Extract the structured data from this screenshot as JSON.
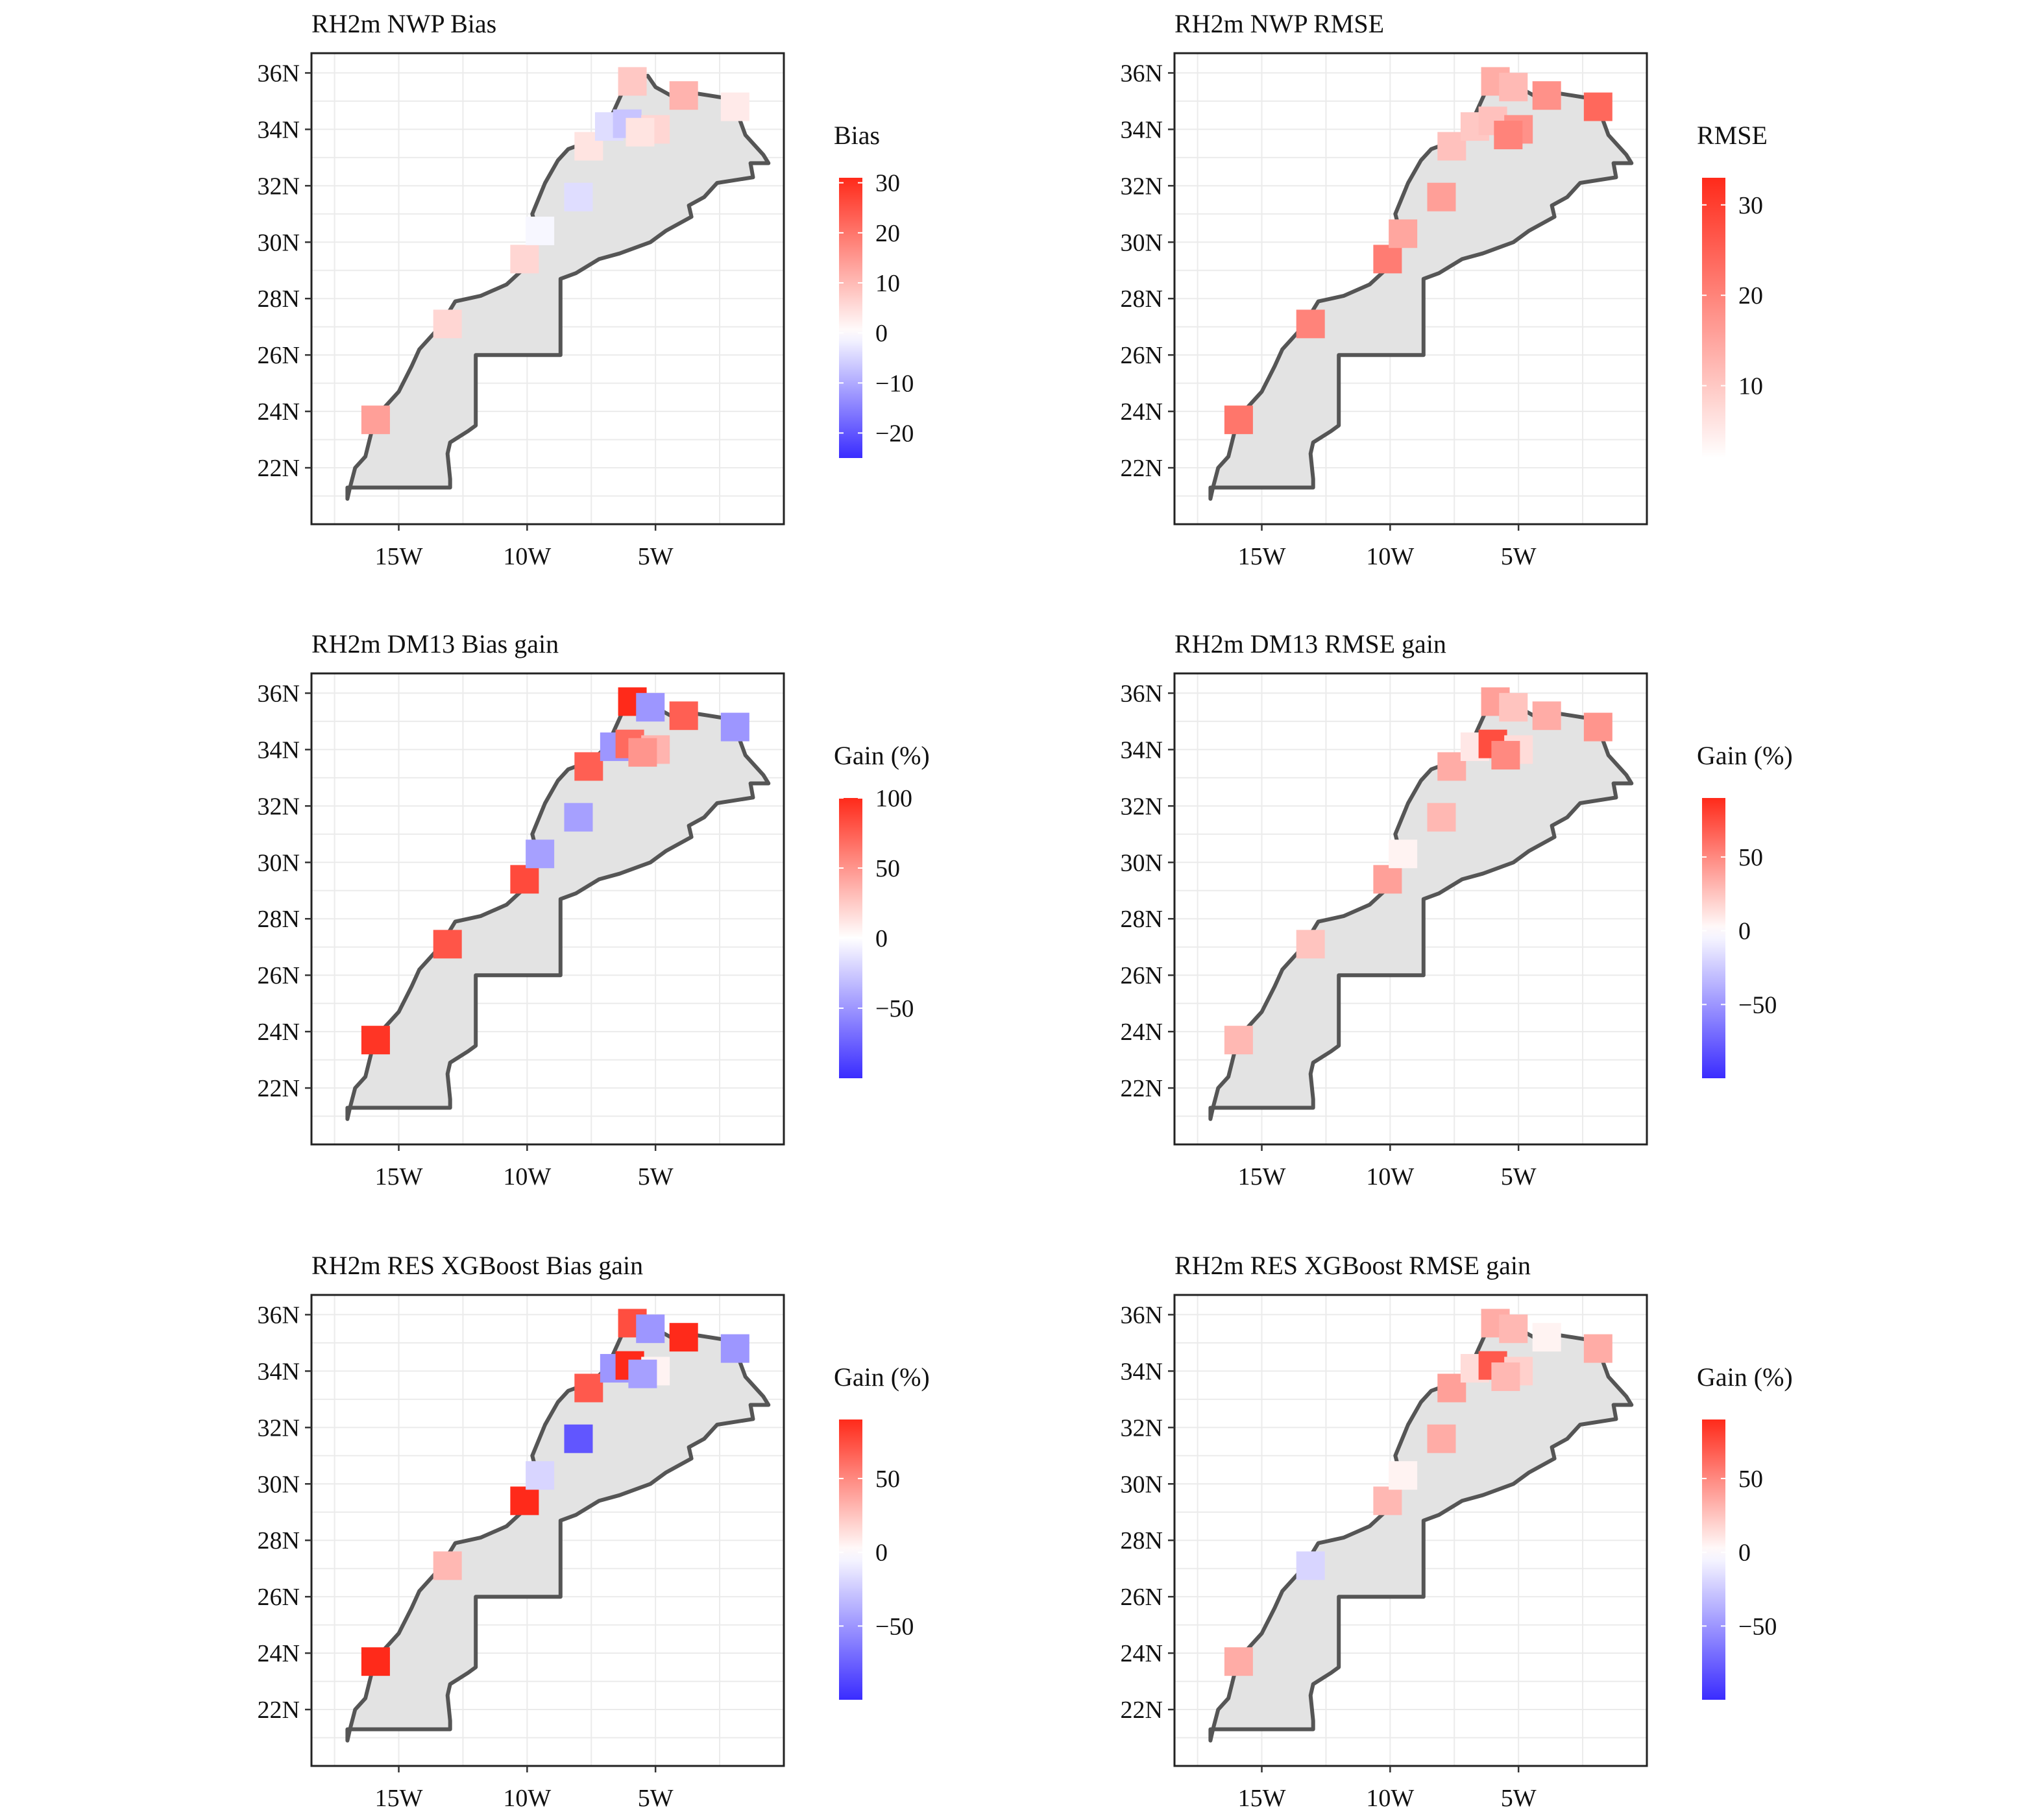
{
  "colors": {
    "negative": "#3a2cff",
    "zero": "#ffffff",
    "positive": "#ff2a1a",
    "land": "#e3e3e3",
    "border": "#555555",
    "grid": "#ebebeb"
  },
  "axes": {
    "x_ticks": [
      "15W",
      "10W",
      "5W"
    ],
    "y_ticks": [
      "22N",
      "24N",
      "26N",
      "28N",
      "30N",
      "32N",
      "34N",
      "36N"
    ]
  },
  "chart_data": [
    {
      "type": "map",
      "title": "RH2m NWP Bias",
      "legend": {
        "title": "Bias",
        "min": -25,
        "max": 31,
        "ticks": [
          30,
          20,
          10,
          0,
          -10,
          -20
        ],
        "tick_labels": [
          "30",
          "20",
          "10",
          "0",
          "−10",
          "−20"
        ]
      },
      "stations": [
        {
          "lon": -15.9,
          "lat": 23.7,
          "value": 14
        },
        {
          "lon": -13.1,
          "lat": 27.1,
          "value": 6
        },
        {
          "lon": -10.1,
          "lat": 29.4,
          "value": 6
        },
        {
          "lon": -9.5,
          "lat": 30.4,
          "value": -1
        },
        {
          "lon": -8.0,
          "lat": 31.6,
          "value": -4
        },
        {
          "lon": -7.6,
          "lat": 33.4,
          "value": 4
        },
        {
          "lon": -6.8,
          "lat": 34.1,
          "value": -4
        },
        {
          "lon": -6.1,
          "lat": 34.2,
          "value": -7
        },
        {
          "lon": -5.0,
          "lat": 34.0,
          "value": 6
        },
        {
          "lon": -5.6,
          "lat": 33.9,
          "value": 4
        },
        {
          "lon": -5.9,
          "lat": 35.7,
          "value": 8
        },
        {
          "lon": -3.9,
          "lat": 35.2,
          "value": 11
        },
        {
          "lon": -1.9,
          "lat": 34.8,
          "value": 3
        }
      ]
    },
    {
      "type": "map",
      "title": "RH2m NWP RMSE",
      "legend": {
        "title": "RMSE",
        "min": 2,
        "max": 33,
        "ticks": [
          30,
          20,
          10
        ],
        "tick_labels": [
          "30",
          "20",
          "10"
        ]
      },
      "stations": [
        {
          "lon": -15.9,
          "lat": 23.7,
          "value": 22
        },
        {
          "lon": -13.1,
          "lat": 27.1,
          "value": 20
        },
        {
          "lon": -10.1,
          "lat": 29.4,
          "value": 21
        },
        {
          "lon": -9.5,
          "lat": 30.3,
          "value": 15
        },
        {
          "lon": -8.0,
          "lat": 31.6,
          "value": 16
        },
        {
          "lon": -7.6,
          "lat": 33.4,
          "value": 11
        },
        {
          "lon": -6.7,
          "lat": 34.1,
          "value": 10
        },
        {
          "lon": -6.0,
          "lat": 34.3,
          "value": 11
        },
        {
          "lon": -5.0,
          "lat": 34.0,
          "value": 18
        },
        {
          "lon": -5.4,
          "lat": 33.8,
          "value": 20
        },
        {
          "lon": -5.9,
          "lat": 35.7,
          "value": 14
        },
        {
          "lon": -5.2,
          "lat": 35.5,
          "value": 12
        },
        {
          "lon": -3.9,
          "lat": 35.2,
          "value": 18
        },
        {
          "lon": -1.9,
          "lat": 34.8,
          "value": 24
        }
      ]
    },
    {
      "type": "map",
      "title": "RH2m DM13 Bias gain",
      "legend": {
        "title": "Gain (%)",
        "min": -100,
        "max": 100,
        "ticks": [
          100,
          50,
          0,
          -50
        ],
        "tick_labels": [
          "100",
          "50",
          "0",
          "−50"
        ]
      },
      "stations": [
        {
          "lon": -15.9,
          "lat": 23.7,
          "value": 95
        },
        {
          "lon": -13.1,
          "lat": 27.1,
          "value": 80
        },
        {
          "lon": -10.1,
          "lat": 29.4,
          "value": 85
        },
        {
          "lon": -9.5,
          "lat": 30.3,
          "value": -45
        },
        {
          "lon": -8.0,
          "lat": 31.6,
          "value": -45
        },
        {
          "lon": -7.6,
          "lat": 33.4,
          "value": 75
        },
        {
          "lon": -6.6,
          "lat": 34.1,
          "value": -50
        },
        {
          "lon": -6.0,
          "lat": 34.2,
          "value": 70
        },
        {
          "lon": -5.0,
          "lat": 34.0,
          "value": 35
        },
        {
          "lon": -5.5,
          "lat": 33.9,
          "value": 50
        },
        {
          "lon": -5.9,
          "lat": 35.7,
          "value": 110
        },
        {
          "lon": -5.2,
          "lat": 35.5,
          "value": -50
        },
        {
          "lon": -3.9,
          "lat": 35.2,
          "value": 75
        },
        {
          "lon": -1.9,
          "lat": 34.8,
          "value": -50
        }
      ]
    },
    {
      "type": "map",
      "title": "RH2m DM13 RMSE gain",
      "legend": {
        "title": "Gain (%)",
        "min": -100,
        "max": 90,
        "ticks": [
          50,
          0,
          -50
        ],
        "tick_labels": [
          "50",
          "0",
          "−50"
        ]
      },
      "stations": [
        {
          "lon": -15.9,
          "lat": 23.7,
          "value": 30
        },
        {
          "lon": -13.1,
          "lat": 27.1,
          "value": 25
        },
        {
          "lon": -10.1,
          "lat": 29.4,
          "value": 40
        },
        {
          "lon": -9.5,
          "lat": 30.3,
          "value": 5
        },
        {
          "lon": -8.0,
          "lat": 31.6,
          "value": 30
        },
        {
          "lon": -7.6,
          "lat": 33.4,
          "value": 35
        },
        {
          "lon": -6.7,
          "lat": 34.1,
          "value": 10
        },
        {
          "lon": -6.0,
          "lat": 34.2,
          "value": 75
        },
        {
          "lon": -5.0,
          "lat": 34.0,
          "value": 15
        },
        {
          "lon": -5.5,
          "lat": 33.8,
          "value": 50
        },
        {
          "lon": -5.9,
          "lat": 35.7,
          "value": 40
        },
        {
          "lon": -5.2,
          "lat": 35.5,
          "value": 25
        },
        {
          "lon": -3.9,
          "lat": 35.2,
          "value": 35
        },
        {
          "lon": -1.9,
          "lat": 34.8,
          "value": 45
        }
      ]
    },
    {
      "type": "map",
      "title": "RH2m RES XGBoost Bias gain",
      "legend": {
        "title": "Gain (%)",
        "min": -100,
        "max": 90,
        "ticks": [
          50,
          0,
          -50
        ],
        "tick_labels": [
          "50",
          "0",
          "−50"
        ]
      },
      "stations": [
        {
          "lon": -15.9,
          "lat": 23.7,
          "value": 90
        },
        {
          "lon": -13.1,
          "lat": 27.1,
          "value": 30
        },
        {
          "lon": -10.1,
          "lat": 29.4,
          "value": 95
        },
        {
          "lon": -9.5,
          "lat": 30.3,
          "value": -20
        },
        {
          "lon": -8.0,
          "lat": 31.6,
          "value": -80
        },
        {
          "lon": -7.6,
          "lat": 33.4,
          "value": 70
        },
        {
          "lon": -6.6,
          "lat": 34.1,
          "value": -50
        },
        {
          "lon": -6.0,
          "lat": 34.2,
          "value": 90
        },
        {
          "lon": -5.0,
          "lat": 34.0,
          "value": 5
        },
        {
          "lon": -5.5,
          "lat": 33.9,
          "value": -45
        },
        {
          "lon": -5.9,
          "lat": 35.7,
          "value": 75
        },
        {
          "lon": -5.2,
          "lat": 35.5,
          "value": -50
        },
        {
          "lon": -3.9,
          "lat": 35.2,
          "value": 92
        },
        {
          "lon": -1.9,
          "lat": 34.8,
          "value": -50
        }
      ]
    },
    {
      "type": "map",
      "title": "RH2m RES XGBoost RMSE gain",
      "legend": {
        "title": "Gain (%)",
        "min": -100,
        "max": 90,
        "ticks": [
          50,
          0,
          -50
        ],
        "tick_labels": [
          "50",
          "0",
          "−50"
        ]
      },
      "stations": [
        {
          "lon": -15.9,
          "lat": 23.7,
          "value": 35
        },
        {
          "lon": -13.1,
          "lat": 27.1,
          "value": -20
        },
        {
          "lon": -10.1,
          "lat": 29.4,
          "value": 30
        },
        {
          "lon": -9.5,
          "lat": 30.3,
          "value": 5
        },
        {
          "lon": -8.0,
          "lat": 31.6,
          "value": 35
        },
        {
          "lon": -7.6,
          "lat": 33.4,
          "value": 40
        },
        {
          "lon": -6.7,
          "lat": 34.1,
          "value": 15
        },
        {
          "lon": -6.0,
          "lat": 34.2,
          "value": 70
        },
        {
          "lon": -5.0,
          "lat": 34.0,
          "value": 20
        },
        {
          "lon": -5.5,
          "lat": 33.8,
          "value": 30
        },
        {
          "lon": -5.9,
          "lat": 35.7,
          "value": 35
        },
        {
          "lon": -5.2,
          "lat": 35.5,
          "value": 30
        },
        {
          "lon": -3.9,
          "lat": 35.2,
          "value": 5
        },
        {
          "lon": -1.9,
          "lat": 34.8,
          "value": 35
        }
      ]
    }
  ]
}
